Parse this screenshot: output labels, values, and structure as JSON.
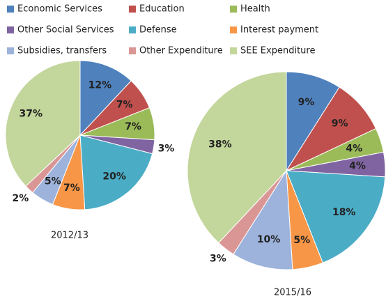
{
  "chart_data": [
    {
      "type": "pie",
      "title": "2012/13",
      "categories": [
        "Economic Services",
        "Education",
        "Health",
        "Other Social Services",
        "Defense",
        "Interest payment",
        "Subsidies, transfers",
        "Other Expenditure",
        "SEE Expenditure"
      ],
      "values": [
        12,
        7,
        7,
        3,
        20,
        7,
        5,
        2,
        37
      ],
      "value_labels": [
        "12%",
        "7%",
        "7%",
        "3%",
        "20%",
        "7%",
        "5%",
        "2%",
        "37%"
      ],
      "colors": [
        "#4f81bd",
        "#c0504d",
        "#9bbb59",
        "#8064a2",
        "#4bacc6",
        "#f79646",
        "#9db3dc",
        "#d99694",
        "#c3d69b"
      ]
    },
    {
      "type": "pie",
      "title": "2015/16",
      "categories": [
        "Economic Services",
        "Education",
        "Health",
        "Other Social Services",
        "Defense",
        "Interest payment",
        "Subsidies, transfers",
        "Other Expenditure",
        "SEE Expenditure"
      ],
      "values": [
        9,
        9,
        4,
        4,
        18,
        5,
        10,
        3,
        38
      ],
      "value_labels": [
        "9%",
        "9%",
        "4%",
        "4%",
        "18%",
        "5%",
        "10%",
        "3%",
        "38%"
      ],
      "colors": [
        "#4f81bd",
        "#c0504d",
        "#9bbb59",
        "#8064a2",
        "#4bacc6",
        "#f79646",
        "#9db3dc",
        "#d99694",
        "#c3d69b"
      ]
    }
  ]
}
